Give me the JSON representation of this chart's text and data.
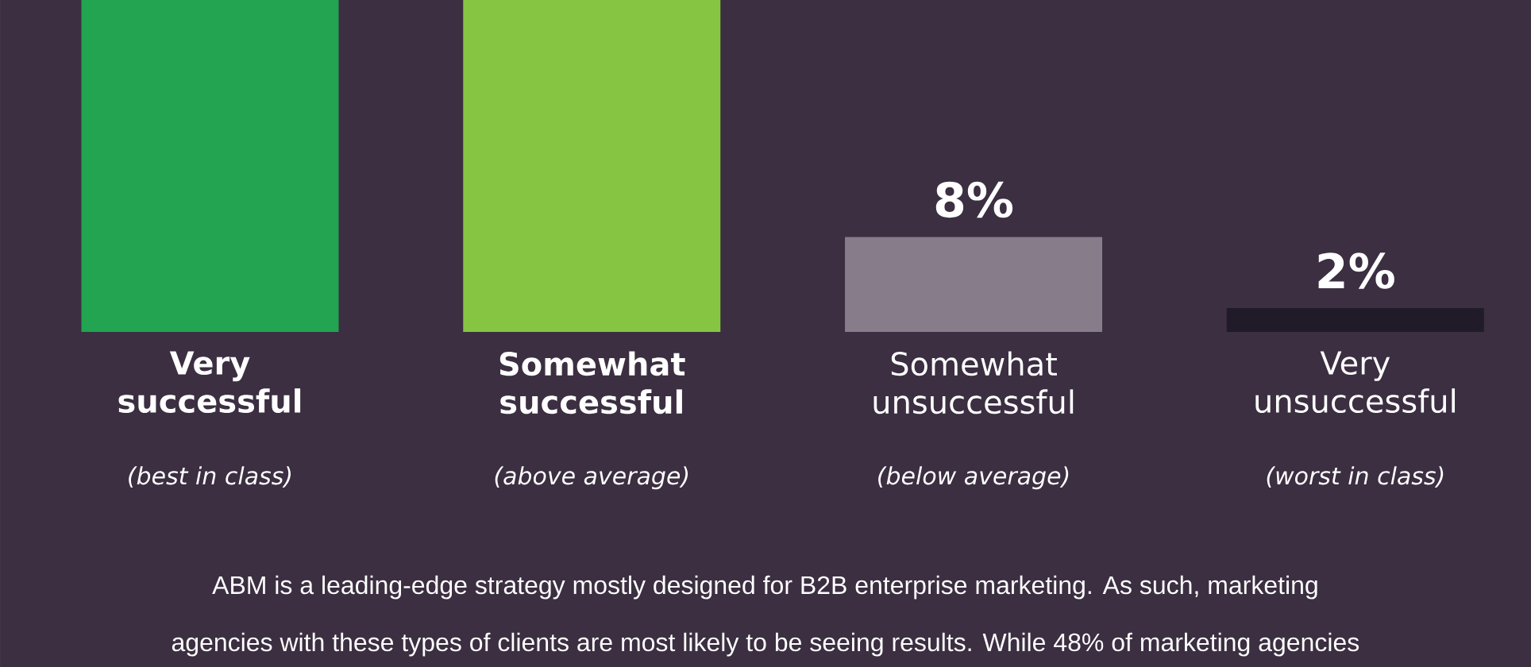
{
  "chart_data": {
    "type": "bar",
    "categories": [
      "**Very successful**",
      "**Somewhat successful**",
      "Somewhat unsuccessful",
      "Very unsuccessful"
    ],
    "values": [
      28,
      28,
      8,
      2
    ],
    "colors": [
      "#22a450",
      "#86c542",
      "#877d8a",
      "#211a28"
    ],
    "value_labels": [
      null,
      null,
      "8%",
      "2%"
    ],
    "ylim": [
      0,
      28
    ],
    "tick_labels": "x",
    "annotations": [
      "*(best in class)*",
      "*(above average)*",
      "*(below average)*",
      "*(worst in class)*",
      "ABM is a leading-edge strategy mostly designed for B2B enterprise marketing. As such, marketing",
      "agencies with these types of clients are most likely to be seeing results. While 48% of marketing agencies"
    ]
  }
}
